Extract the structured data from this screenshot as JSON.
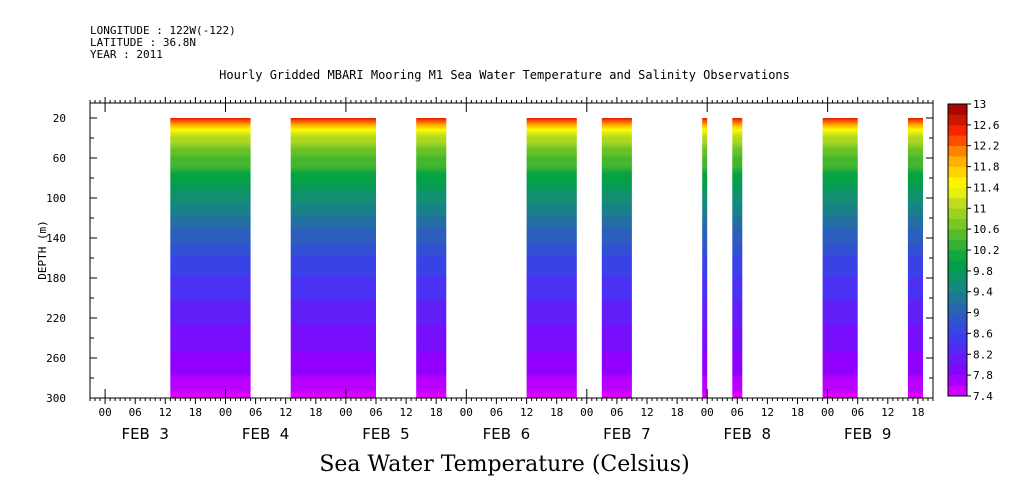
{
  "header": {
    "longitude": "LONGITUDE : 122W(-122)",
    "latitude": "LATITUDE : 36.8N",
    "year": "YEAR : 2011"
  },
  "chart_data": {
    "type": "heatmap",
    "title": "Hourly Gridded MBARI Mooring M1 Sea Water Temperature and Salinity Observations",
    "ylabel": "DEPTH (m)",
    "xlabel": "Sea Water Temperature (Celsius)",
    "ylim": [
      300,
      5
    ],
    "y_ticks": [
      20,
      60,
      100,
      140,
      180,
      220,
      260,
      300
    ],
    "x_hour_ticks": [
      "00",
      "06",
      "12",
      "18",
      "00",
      "06",
      "12",
      "18",
      "00",
      "06",
      "12",
      "18",
      "00",
      "06",
      "12",
      "18",
      "00",
      "06",
      "12",
      "18",
      "00",
      "06",
      "12",
      "18",
      "00",
      "06",
      "12",
      "18"
    ],
    "x_day_labels": [
      "FEB  3",
      "FEB  4",
      "FEB  5",
      "FEB  6",
      "FEB  7",
      "FEB  8",
      "FEB  9"
    ],
    "xlim_hours": [
      -3,
      165
    ],
    "data_segments": [
      {
        "start_hour": 13,
        "end_hour": 29
      },
      {
        "start_hour": 37,
        "end_hour": 54
      },
      {
        "start_hour": 62,
        "end_hour": 68
      },
      {
        "start_hour": 84,
        "end_hour": 94
      },
      {
        "start_hour": 99,
        "end_hour": 105
      },
      {
        "start_hour": 119,
        "end_hour": 120
      },
      {
        "start_hour": 125,
        "end_hour": 127
      },
      {
        "start_hour": 143,
        "end_hour": 150
      },
      {
        "start_hour": 160,
        "end_hour": 163
      }
    ],
    "colorbar": {
      "min": 7.4,
      "max": 13,
      "step": 0.2,
      "labels": [
        "13",
        "12.6",
        "12.2",
        "11.8",
        "11.4",
        "11",
        "10.6",
        "10.2",
        "9.8",
        "9.4",
        "9",
        "8.6",
        "8.2",
        "7.8",
        "7.4"
      ]
    },
    "temperature_profile": [
      {
        "depth": 20,
        "temp": 12.6
      },
      {
        "depth": 30,
        "temp": 11.6
      },
      {
        "depth": 40,
        "temp": 11.0
      },
      {
        "depth": 60,
        "temp": 10.5
      },
      {
        "depth": 80,
        "temp": 10.0
      },
      {
        "depth": 100,
        "temp": 9.6
      },
      {
        "depth": 130,
        "temp": 9.1
      },
      {
        "depth": 160,
        "temp": 8.7
      },
      {
        "depth": 200,
        "temp": 8.3
      },
      {
        "depth": 240,
        "temp": 8.0
      },
      {
        "depth": 270,
        "temp": 7.8
      },
      {
        "depth": 300,
        "temp": 7.4
      }
    ]
  }
}
